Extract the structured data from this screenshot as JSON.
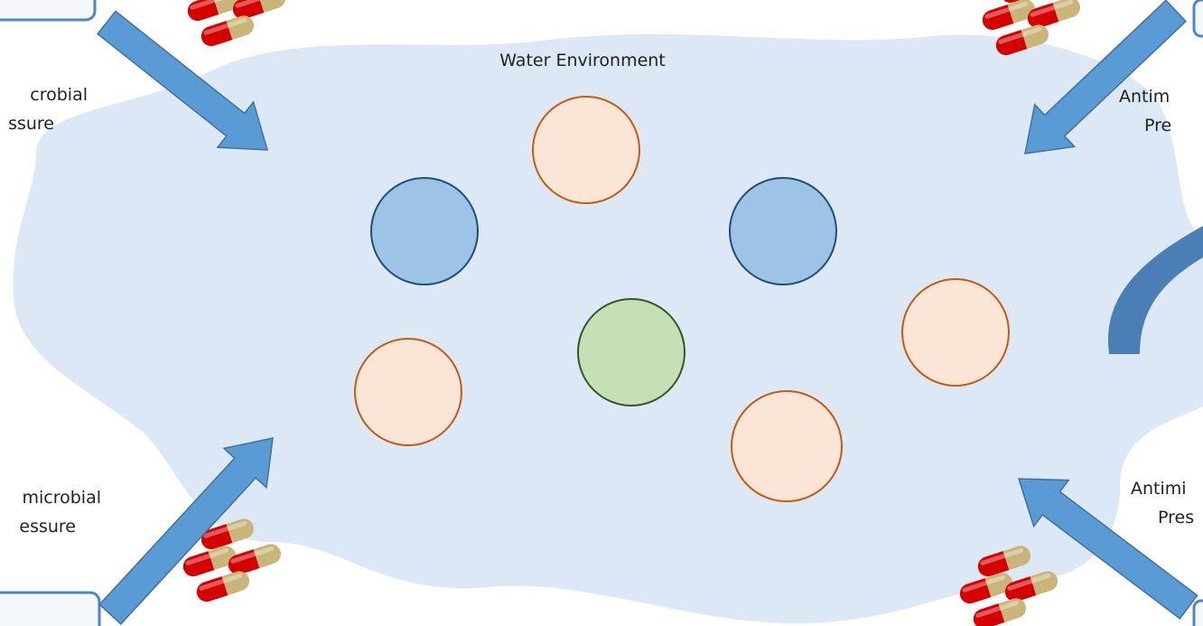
{
  "title": "Water Environment",
  "labels": [
    {
      "lines": [
        "crobial",
        "ssure"
      ]
    },
    {
      "lines": [
        "microbial",
        "essure"
      ]
    },
    {
      "lines": [
        "Antim",
        "Pre"
      ]
    },
    {
      "lines": [
        "Antimi",
        "Pres"
      ]
    }
  ]
}
